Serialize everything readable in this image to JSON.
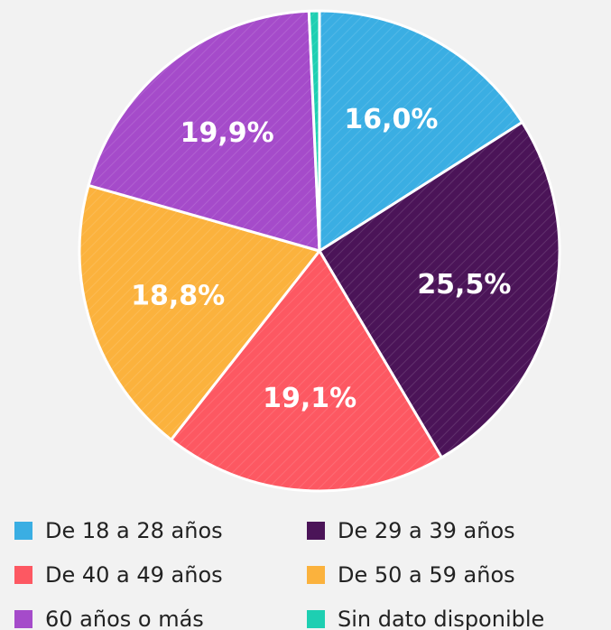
{
  "chart_data": {
    "type": "pie",
    "categories": [
      "De 18 a 28 años",
      "De 29 a 39 años",
      "De 40 a 49 años",
      "De 50 a 59 años",
      "60 años o más",
      "Sin dato disponible"
    ],
    "values": [
      16.0,
      25.5,
      19.1,
      18.8,
      19.9,
      0.7
    ],
    "value_labels": [
      "16,0%",
      "25,5%",
      "19,1%",
      "18,8%",
      "19,9%",
      null
    ],
    "colors": [
      "#3aaee3",
      "#4b1458",
      "#fd5862",
      "#fbb23d",
      "#a54bca",
      "#1ecfb2"
    ],
    "legend": "bottom"
  }
}
